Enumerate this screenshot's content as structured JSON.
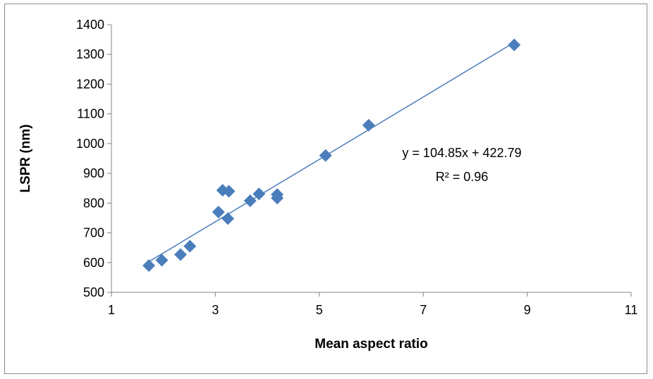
{
  "chart_data": {
    "type": "scatter",
    "title": "",
    "xlabel": "Mean aspect ratio",
    "ylabel": "LSPR (nm)",
    "xlim": [
      1,
      11
    ],
    "ylim": [
      500,
      1400
    ],
    "x_ticks": [
      1,
      3,
      5,
      7,
      9,
      11
    ],
    "y_ticks": [
      500,
      600,
      700,
      800,
      900,
      1000,
      1100,
      1200,
      1300,
      1400
    ],
    "grid": false,
    "legend": "none",
    "series": [
      {
        "color": "#4a7ebb",
        "marker": "diamond",
        "points": [
          {
            "x": 1.72,
            "y": 590
          },
          {
            "x": 1.97,
            "y": 608
          },
          {
            "x": 2.33,
            "y": 627
          },
          {
            "x": 2.51,
            "y": 655
          },
          {
            "x": 3.06,
            "y": 770
          },
          {
            "x": 3.14,
            "y": 843
          },
          {
            "x": 3.26,
            "y": 840
          },
          {
            "x": 3.24,
            "y": 748
          },
          {
            "x": 3.67,
            "y": 808
          },
          {
            "x": 3.84,
            "y": 831
          },
          {
            "x": 4.19,
            "y": 829
          },
          {
            "x": 4.19,
            "y": 817
          },
          {
            "x": 5.12,
            "y": 960
          },
          {
            "x": 5.95,
            "y": 1062
          },
          {
            "x": 8.75,
            "y": 1332
          }
        ]
      }
    ],
    "trendline": {
      "type": "linear",
      "slope": 104.85,
      "intercept": 422.79,
      "x_range": [
        1.72,
        8.75
      ],
      "color": "#4a7ebb",
      "equation_label": "y = 104.85x + 422.79",
      "r2_label": "R² = 0.96"
    }
  }
}
